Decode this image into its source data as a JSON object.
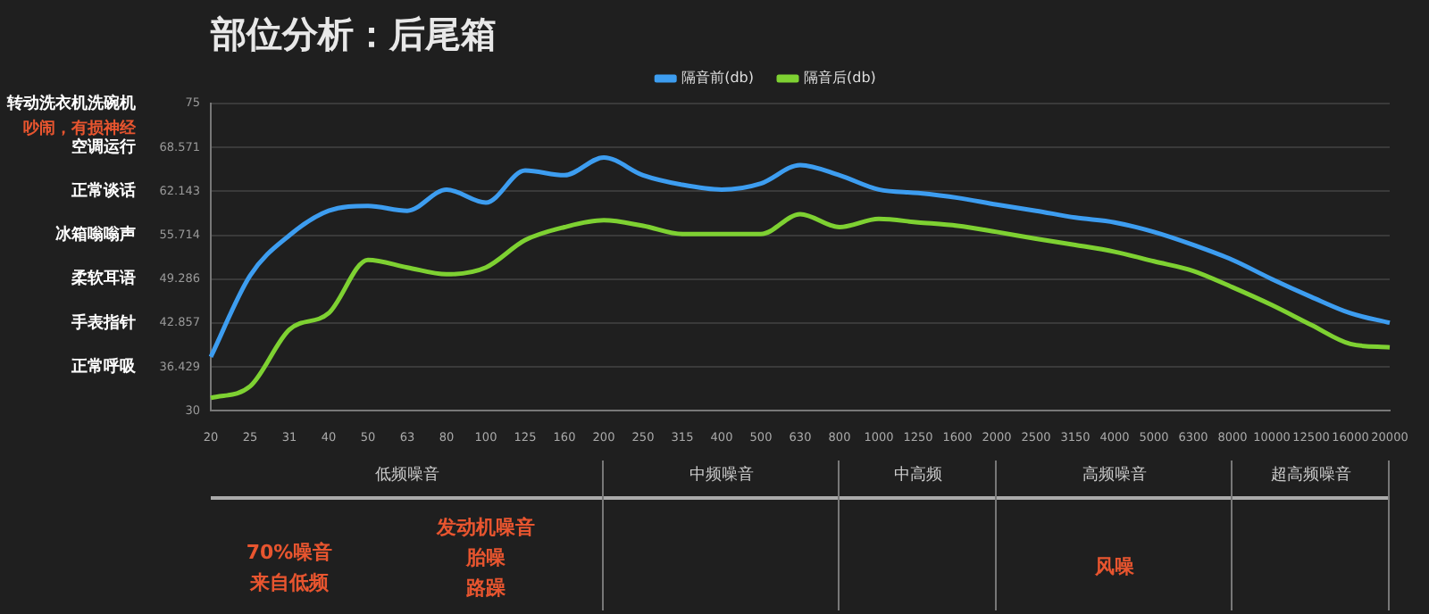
{
  "chart_data": {
    "type": "line",
    "title": "部位分析：后尾箱",
    "categories": [
      "20",
      "25",
      "31",
      "40",
      "50",
      "63",
      "80",
      "100",
      "125",
      "160",
      "200",
      "250",
      "315",
      "400",
      "500",
      "630",
      "800",
      "1000",
      "1250",
      "1600",
      "2000",
      "2500",
      "3150",
      "4000",
      "5000",
      "6300",
      "8000",
      "10000",
      "12500",
      "16000",
      "20000"
    ],
    "series": [
      {
        "name": "隔音前(db)",
        "color": "#3d9df0",
        "values": [
          37.9,
          49.8,
          55.7,
          59.3,
          60.0,
          59.3,
          62.4,
          60.5,
          65.2,
          64.5,
          67.1,
          64.5,
          63.1,
          62.4,
          63.3,
          66.0,
          64.5,
          62.4,
          61.9,
          61.2,
          60.2,
          59.3,
          58.3,
          57.6,
          56.2,
          54.3,
          52.1,
          49.3,
          46.7,
          44.3,
          42.9
        ]
      },
      {
        "name": "隔音后(db)",
        "color": "#7ed132",
        "values": [
          31.9,
          33.6,
          41.9,
          44.3,
          52.1,
          51.0,
          50.0,
          51.0,
          55.0,
          56.9,
          57.9,
          57.1,
          55.9,
          55.9,
          55.9,
          58.8,
          56.9,
          58.1,
          57.6,
          57.1,
          56.2,
          55.2,
          54.3,
          53.3,
          51.9,
          50.5,
          48.1,
          45.5,
          42.6,
          39.8,
          39.3
        ]
      }
    ],
    "ylim": [
      30,
      75
    ],
    "yticks": [
      30,
      36.429,
      42.857,
      49.286,
      55.714,
      62.143,
      68.571,
      75
    ],
    "grid": "y",
    "legend": "top",
    "marker": "none",
    "line_style": "solid",
    "annotations": [
      "转动洗衣机洗碗机",
      "吵闹，有损神经",
      "空调运行",
      "正常谈话",
      "冰箱嗡嗡声",
      "柔软耳语",
      "手表指针",
      "正常呼吸",
      "低频噪音",
      "中频噪音",
      "中高频",
      "高频噪音",
      "超高频噪音",
      "70%噪音来自低频",
      "发动机噪音胎噪路躁",
      "风噪"
    ]
  }
}
